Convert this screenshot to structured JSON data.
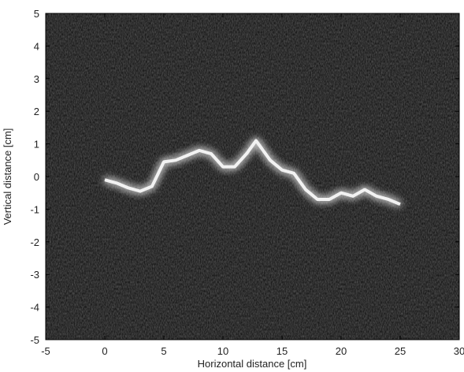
{
  "chart_data": {
    "type": "line",
    "xlabel": "Horizontal distance [cm]",
    "ylabel": "Vertical distance [cm]",
    "xlim": [
      -5,
      30
    ],
    "ylim": [
      -5,
      5
    ],
    "xticks": [
      -5,
      0,
      5,
      10,
      15,
      20,
      25,
      30
    ],
    "yticks": [
      -5,
      -4,
      -3,
      -2,
      -1,
      0,
      1,
      2,
      3,
      4,
      5
    ],
    "x": [
      0,
      1,
      2,
      3,
      4,
      5,
      6,
      7,
      8,
      9,
      10,
      11,
      12,
      12.8,
      14,
      15,
      16,
      17,
      18,
      19,
      20,
      21,
      22,
      23,
      24,
      25
    ],
    "series": [
      {
        "color": "#f2f2f2",
        "values": [
          -0.1,
          -0.2,
          -0.35,
          -0.45,
          -0.3,
          0.45,
          0.5,
          0.65,
          0.8,
          0.7,
          0.3,
          0.3,
          0.7,
          1.1,
          0.5,
          0.2,
          0.1,
          -0.4,
          -0.7,
          -0.7,
          -0.5,
          -0.6,
          -0.4,
          -0.6,
          -0.7,
          -0.85
        ]
      }
    ]
  }
}
